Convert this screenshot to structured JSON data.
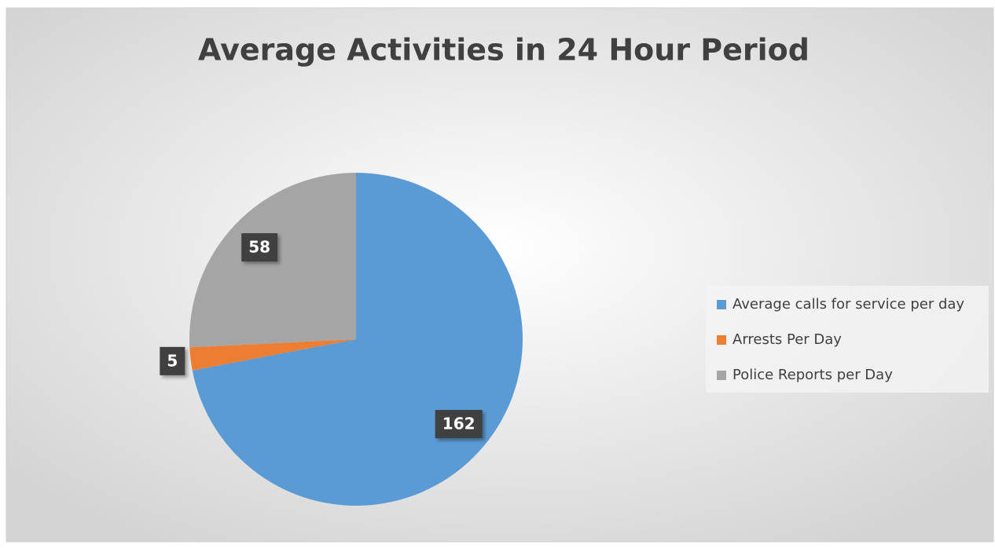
{
  "chart_data": {
    "type": "pie",
    "title": "Average Activities in 24 Hour Period",
    "categories": [
      "Average calls for service per day",
      "Arrests Per Day",
      "Police Reports per Day"
    ],
    "values": [
      162,
      5,
      58
    ],
    "colors": [
      "#5b9bd5",
      "#ed7d31",
      "#a5a5a5"
    ],
    "legend": "right"
  }
}
